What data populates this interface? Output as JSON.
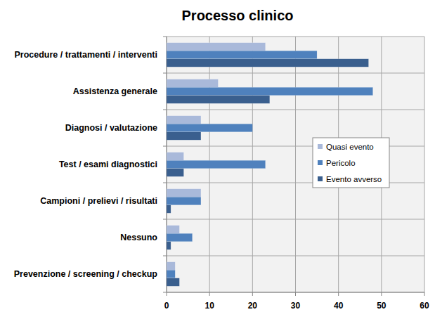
{
  "chart_data": {
    "type": "bar",
    "title": "Processo clinico",
    "orientation": "horizontal",
    "categories": [
      "Procedure / trattamenti / interventi",
      "Assistenza generale",
      "Diagnosi / valutazione",
      "Test / esami diagnostici",
      "Campioni / prelievi / risultati",
      "Nessuno",
      "Prevenzione / screening / checkup"
    ],
    "series": [
      {
        "name": "Quasi evento",
        "color": "#a9b9da",
        "values": [
          23,
          12,
          8,
          4,
          8,
          3,
          2
        ]
      },
      {
        "name": "Pericolo",
        "color": "#4f81bd",
        "values": [
          35,
          48,
          20,
          23,
          8,
          6,
          2
        ]
      },
      {
        "name": "Evento avverso",
        "color": "#3a5f8e",
        "values": [
          47,
          24,
          8,
          4,
          1,
          1,
          3
        ]
      }
    ],
    "xlim": [
      0,
      60
    ],
    "xticks": [
      0,
      10,
      20,
      30,
      40,
      50,
      60
    ],
    "grid": true,
    "legend": "right"
  }
}
